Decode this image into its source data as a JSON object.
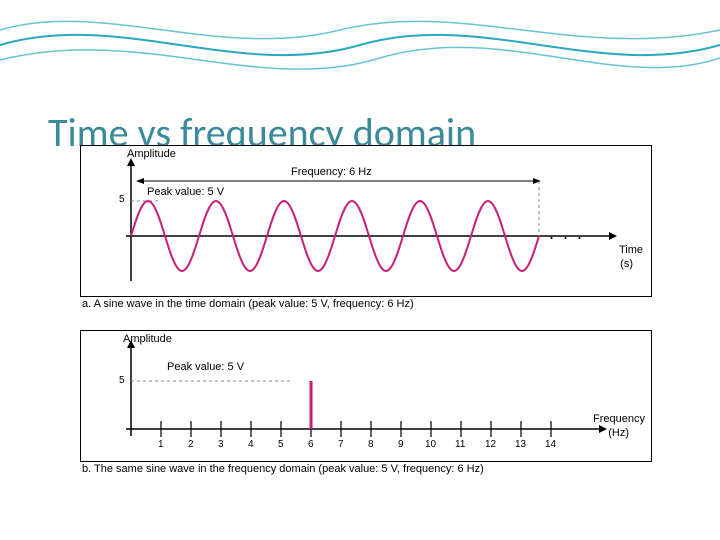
{
  "title": "Time vs frequency domain",
  "decoration": {
    "stroke_color": "#2aa9bf",
    "stroke_width": 2,
    "background": "#ffffff"
  },
  "figure_a": {
    "type": "line",
    "title_y": "Amplitude",
    "title_x_line1": "Time",
    "title_x_line2": "(s)",
    "freq_label": "Frequency: 6 Hz",
    "peak_label": "Peak value: 5 V",
    "peak_tick": "5",
    "ellipsis": ". . .",
    "wave": {
      "amplitude": 5,
      "cycles_shown": 6,
      "frequency_hz": 6,
      "color": "#c41e7a",
      "stroke_width": 2
    },
    "axis_color": "#000000",
    "dash_color": "#888888",
    "caption": "a. A sine wave in the time domain (peak value: 5 V, frequency: 6 Hz)"
  },
  "figure_b": {
    "type": "bar",
    "title_y": "Amplitude",
    "title_x_line1": "Frequency",
    "title_x_line2": "(Hz)",
    "peak_label": "Peak value: 5 V",
    "peak_tick": "5",
    "x_ticks": [
      "1",
      "2",
      "3",
      "4",
      "5",
      "6",
      "7",
      "8",
      "9",
      "10",
      "11",
      "12",
      "13",
      "14"
    ],
    "spike": {
      "x": 6,
      "value": 5,
      "color": "#c41e7a",
      "width": 3
    },
    "axis_color": "#000000",
    "dash_color": "#888888",
    "caption": "b. The same sine wave in the frequency domain (peak value: 5 V, frequency: 6 Hz)"
  }
}
